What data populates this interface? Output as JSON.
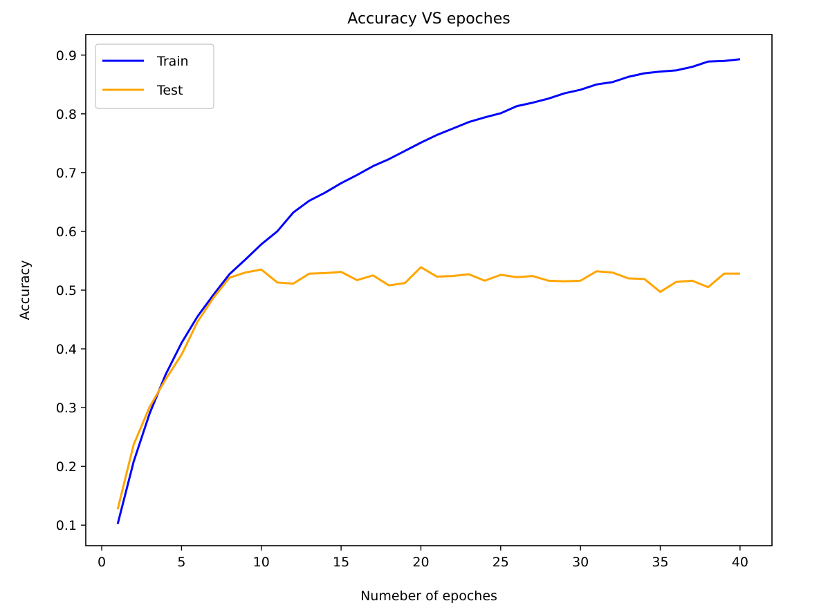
{
  "chart_data": {
    "type": "line",
    "title": "Accuracy VS epoches",
    "xlabel": "Numeber of epoches",
    "ylabel": "Accuracy",
    "xlim": [
      -1,
      42
    ],
    "ylim": [
      0.065,
      0.935
    ],
    "xticks": [
      0,
      5,
      10,
      15,
      20,
      25,
      30,
      35,
      40
    ],
    "yticks": [
      0.1,
      0.2,
      0.3,
      0.4,
      0.5,
      0.6,
      0.7,
      0.8,
      0.9
    ],
    "grid": false,
    "legend_position": "top-left",
    "x": [
      1,
      2,
      3,
      4,
      5,
      6,
      7,
      8,
      9,
      10,
      11,
      12,
      13,
      14,
      15,
      16,
      17,
      18,
      19,
      20,
      21,
      22,
      23,
      24,
      25,
      26,
      27,
      28,
      29,
      30,
      31,
      32,
      33,
      34,
      35,
      36,
      37,
      38,
      39,
      40
    ],
    "series": [
      {
        "name": "Train",
        "color": "#0000ff",
        "values": [
          0.102,
          0.208,
          0.29,
          0.356,
          0.41,
          0.455,
          0.492,
          0.527,
          0.552,
          0.578,
          0.6,
          0.632,
          0.652,
          0.666,
          0.682,
          0.696,
          0.711,
          0.723,
          0.737,
          0.751,
          0.764,
          0.775,
          0.786,
          0.794,
          0.801,
          0.813,
          0.819,
          0.826,
          0.835,
          0.841,
          0.85,
          0.854,
          0.863,
          0.869,
          0.872,
          0.874,
          0.88,
          0.889,
          0.89,
          0.893
        ]
      },
      {
        "name": "Test",
        "color": "#ffa500",
        "values": [
          0.127,
          0.237,
          0.301,
          0.348,
          0.39,
          0.446,
          0.487,
          0.521,
          0.53,
          0.535,
          0.513,
          0.511,
          0.528,
          0.529,
          0.531,
          0.517,
          0.525,
          0.508,
          0.512,
          0.539,
          0.523,
          0.524,
          0.527,
          0.516,
          0.526,
          0.522,
          0.524,
          0.516,
          0.515,
          0.516,
          0.532,
          0.53,
          0.52,
          0.519,
          0.497,
          0.514,
          0.516,
          0.505,
          0.528,
          0.528
        ]
      }
    ]
  }
}
